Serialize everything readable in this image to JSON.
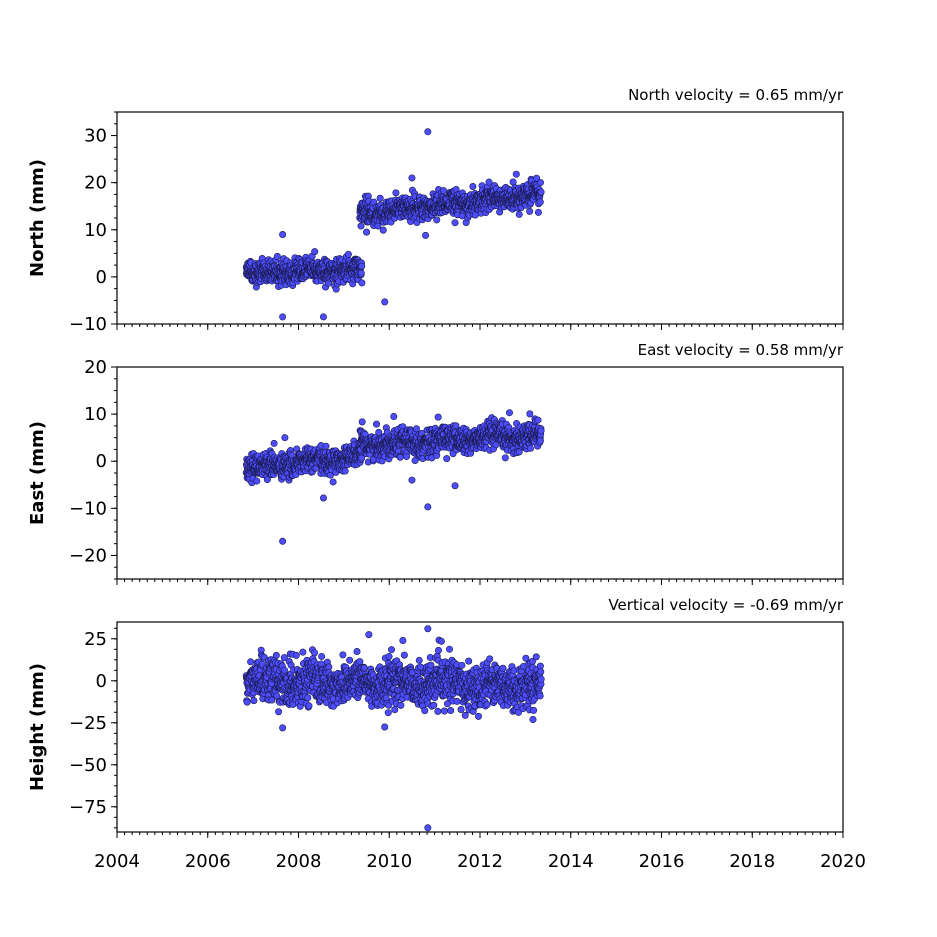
{
  "chart_data": {
    "type": "scatter",
    "marker_color": "#4d4dff",
    "marker_edge_color": "#1a1a4d",
    "x": {
      "ticks": [
        2004,
        2006,
        2008,
        2010,
        2012,
        2014,
        2016,
        2018,
        2020
      ],
      "tick_labels": [
        "2004",
        "2006",
        "2008",
        "2010",
        "2012",
        "2014",
        "2016",
        "2018",
        "2020"
      ],
      "xlim": [
        2004,
        2020
      ],
      "minor_step_years": 0.1666667
    },
    "panels": [
      {
        "ylabel": "North (mm)",
        "velocity_label": "North velocity = 0.65 mm/yr",
        "ylim": [
          -10,
          35
        ],
        "yticks": [
          -10,
          0,
          10,
          20,
          30
        ],
        "ytick_labels": [
          "−10",
          "0",
          "10",
          "20",
          "30"
        ],
        "minor_step": 2.5,
        "segments": [
          {
            "x_start": 2006.85,
            "x_end": 2009.4,
            "y_start": 1.0,
            "y_end": 1.5,
            "noise": 1.2
          },
          {
            "x_start": 2009.35,
            "x_end": 2013.35,
            "y_start": 13.5,
            "y_end": 17.5,
            "noise": 1.3
          }
        ],
        "outliers": [
          {
            "x": 2007.65,
            "y": 9.0
          },
          {
            "x": 2007.65,
            "y": -8.5
          },
          {
            "x": 2008.55,
            "y": -8.5
          },
          {
            "x": 2009.9,
            "y": -5.3
          },
          {
            "x": 2010.85,
            "y": 30.8
          },
          {
            "x": 2010.8,
            "y": 8.8
          },
          {
            "x": 2010.5,
            "y": 21.0
          },
          {
            "x": 2011.45,
            "y": 11.5
          },
          {
            "x": 2012.8,
            "y": 21.8
          },
          {
            "x": 2009.5,
            "y": 9.5
          }
        ]
      },
      {
        "ylabel": "East (mm)",
        "velocity_label": "East velocity = 0.58 mm/yr",
        "ylim": [
          -25,
          20
        ],
        "yticks": [
          -20,
          -10,
          0,
          10,
          20
        ],
        "ytick_labels": [
          "−20",
          "−10",
          "0",
          "10",
          "20"
        ],
        "minor_step": 2.5,
        "segments": [
          {
            "x_start": 2006.85,
            "x_end": 2009.4,
            "y_start": -1.5,
            "y_end": 1.0,
            "noise": 1.3
          },
          {
            "x_start": 2009.35,
            "x_end": 2013.35,
            "y_start": 3.5,
            "y_end": 5.5,
            "noise": 1.4
          }
        ],
        "outliers": [
          {
            "x": 2007.65,
            "y": -17.0
          },
          {
            "x": 2008.55,
            "y": -7.8
          },
          {
            "x": 2010.5,
            "y": -4.0
          },
          {
            "x": 2010.85,
            "y": -9.7
          },
          {
            "x": 2011.45,
            "y": -5.2
          },
          {
            "x": 2010.1,
            "y": 9.5
          },
          {
            "x": 2012.65,
            "y": 10.3
          },
          {
            "x": 2007.7,
            "y": 5.0
          }
        ]
      },
      {
        "ylabel": "Height (mm)",
        "velocity_label": "Vertical velocity = -0.69 mm/yr",
        "ylim": [
          -90,
          35
        ],
        "yticks": [
          -75,
          -50,
          -25,
          0,
          25
        ],
        "ytick_labels": [
          "−75",
          "−50",
          "−25",
          "0",
          "25"
        ],
        "minor_step": 6.25,
        "segments": [
          {
            "x_start": 2006.85,
            "x_end": 2013.35,
            "y_start": 0.0,
            "y_end": -3.0,
            "noise": 6.5
          }
        ],
        "outliers": [
          {
            "x": 2010.85,
            "y": -87.5
          },
          {
            "x": 2010.85,
            "y": 31.0
          },
          {
            "x": 2009.55,
            "y": 27.5
          },
          {
            "x": 2007.65,
            "y": -28.0
          },
          {
            "x": 2009.9,
            "y": -27.5
          },
          {
            "x": 2011.15,
            "y": 23.5
          },
          {
            "x": 2010.3,
            "y": 24.0
          }
        ]
      }
    ]
  }
}
